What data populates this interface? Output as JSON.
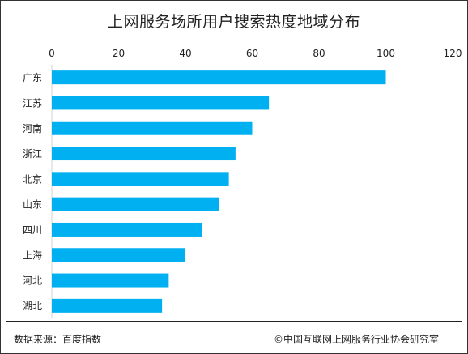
{
  "chart_data": {
    "type": "bar",
    "orientation": "horizontal",
    "title": "上网服务场所用户搜索热度地域分布",
    "categories": [
      "广东",
      "江苏",
      "河南",
      "浙江",
      "北京",
      "山东",
      "四川",
      "上海",
      "河北",
      "湖北"
    ],
    "values": [
      100,
      65,
      60,
      55,
      53,
      50,
      45,
      40,
      35,
      33
    ],
    "xlim": [
      0,
      120
    ],
    "xticks": [
      0,
      20,
      40,
      60,
      80,
      100,
      120
    ],
    "x_axis_position": "top",
    "grid": false,
    "bar_color": "#00B0F0"
  },
  "footer": {
    "source": "数据来源：百度指数",
    "copyright": "©中国互联网上网服务行业协会研究室"
  }
}
